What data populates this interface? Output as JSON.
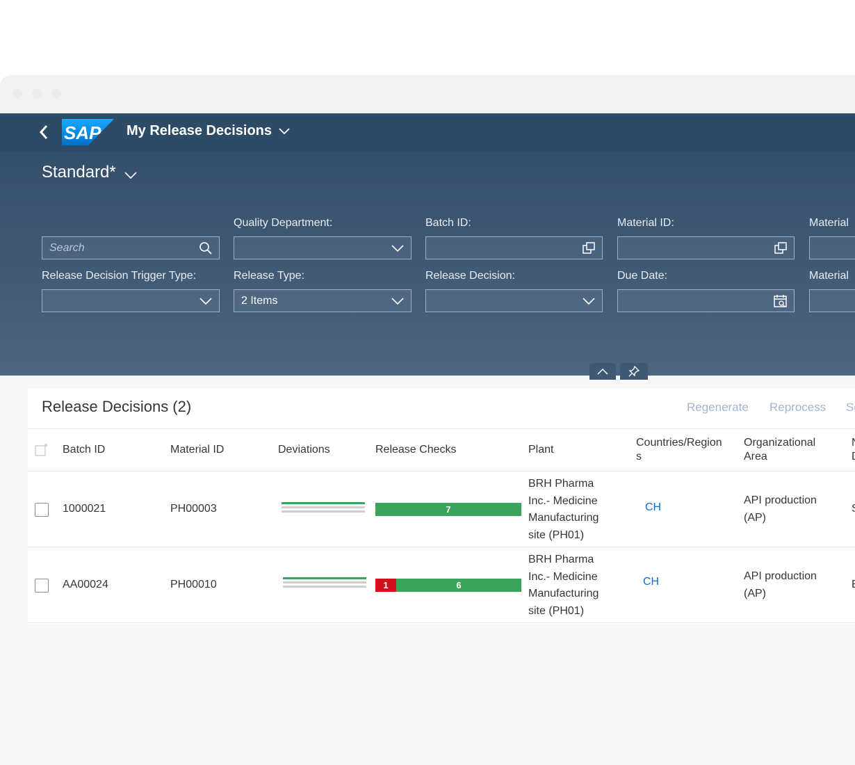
{
  "colors": {
    "shell": "#2d4a66",
    "filter_top": "#344f6b",
    "filter_bottom": "#4c6580",
    "link": "#0a6ed1",
    "success": "#3aa55a",
    "error": "#d0111d",
    "toolbar_text": "#9fb6cf"
  },
  "shell": {
    "logo": "SAP",
    "app_title": "My Release Decisions"
  },
  "filterbar": {
    "variant": "Standard*",
    "search_placeholder": "Search",
    "fields": {
      "quality_department": {
        "label": "Quality Department:",
        "value": ""
      },
      "batch_id": {
        "label": "Batch ID:",
        "value": ""
      },
      "material_id": {
        "label": "Material ID:",
        "value": ""
      },
      "material_col5_row1": {
        "label": "Material",
        "value": ""
      },
      "release_decision_trigger_type": {
        "label": "Release Decision Trigger Type:",
        "value": ""
      },
      "release_type": {
        "label": "Release Type:",
        "value": "2 Items"
      },
      "release_decision": {
        "label": "Release Decision:",
        "value": ""
      },
      "due_date": {
        "label": "Due Date:",
        "value": ""
      },
      "material_col5_row2": {
        "label": "Material",
        "value": ""
      }
    }
  },
  "table": {
    "title": "Release Decisions (2)",
    "toolbar": [
      "Regenerate",
      "Reprocess",
      "Se"
    ],
    "columns": {
      "batch_id": "Batch ID",
      "material_id": "Material ID",
      "deviations": "Deviations",
      "release_checks": "Release Checks",
      "plant": "Plant",
      "countries_line1": "Countries/Region",
      "countries_line2": "s",
      "org_line1": "Organizational",
      "org_line2": "Area",
      "next_line1": "N",
      "next_line2": "D"
    },
    "rows": [
      {
        "batch_id": "1000021",
        "material_id": "PH00003",
        "release_checks": {
          "failed": 0,
          "passed": 7,
          "passed_label": "7"
        },
        "plant": [
          "BRH Pharma",
          "Inc.- Medicine",
          "Manufacturing",
          "site (PH01)"
        ],
        "country": "CH",
        "org_area": [
          "API production",
          "(AP)"
        ],
        "next": "S"
      },
      {
        "batch_id": "AA00024",
        "material_id": "PH00010",
        "release_checks": {
          "failed": 1,
          "failed_label": "1",
          "passed": 6,
          "passed_label": "6"
        },
        "plant": [
          "BRH Pharma",
          "Inc.- Medicine",
          "Manufacturing",
          "site (PH01)"
        ],
        "country": "CH",
        "org_area": [
          "API production",
          "(AP)"
        ],
        "next": "E"
      }
    ]
  }
}
